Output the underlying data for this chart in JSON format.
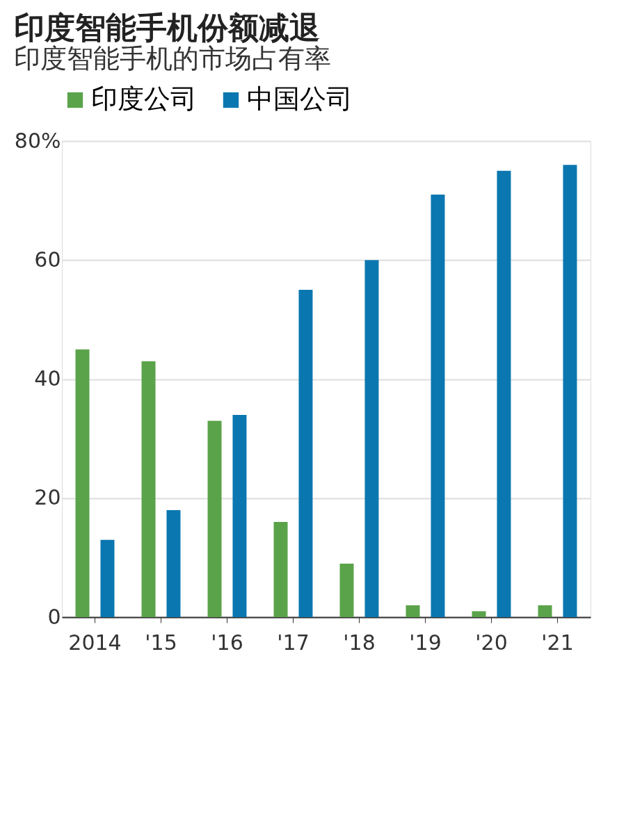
{
  "chart_data": {
    "type": "bar",
    "title": "印度智能手机份额减退",
    "subtitle": "印度智能手机的市场占有率",
    "categories": [
      "2014",
      "'15",
      "'16",
      "'17",
      "'18",
      "'19",
      "'20",
      "'21"
    ],
    "series": [
      {
        "name": "印度公司",
        "color": "#5aa34a",
        "values": [
          45,
          43,
          33,
          16,
          9,
          2,
          1,
          2
        ]
      },
      {
        "name": "中国公司",
        "color": "#0b77b0",
        "values": [
          13,
          18,
          34,
          55,
          60,
          71,
          75,
          76
        ]
      }
    ],
    "ylim": [
      0,
      80
    ],
    "yticks": [
      0,
      20,
      40,
      60,
      {
        "value": 80,
        "label": "80%"
      }
    ],
    "grid": "y",
    "legend": "top"
  }
}
